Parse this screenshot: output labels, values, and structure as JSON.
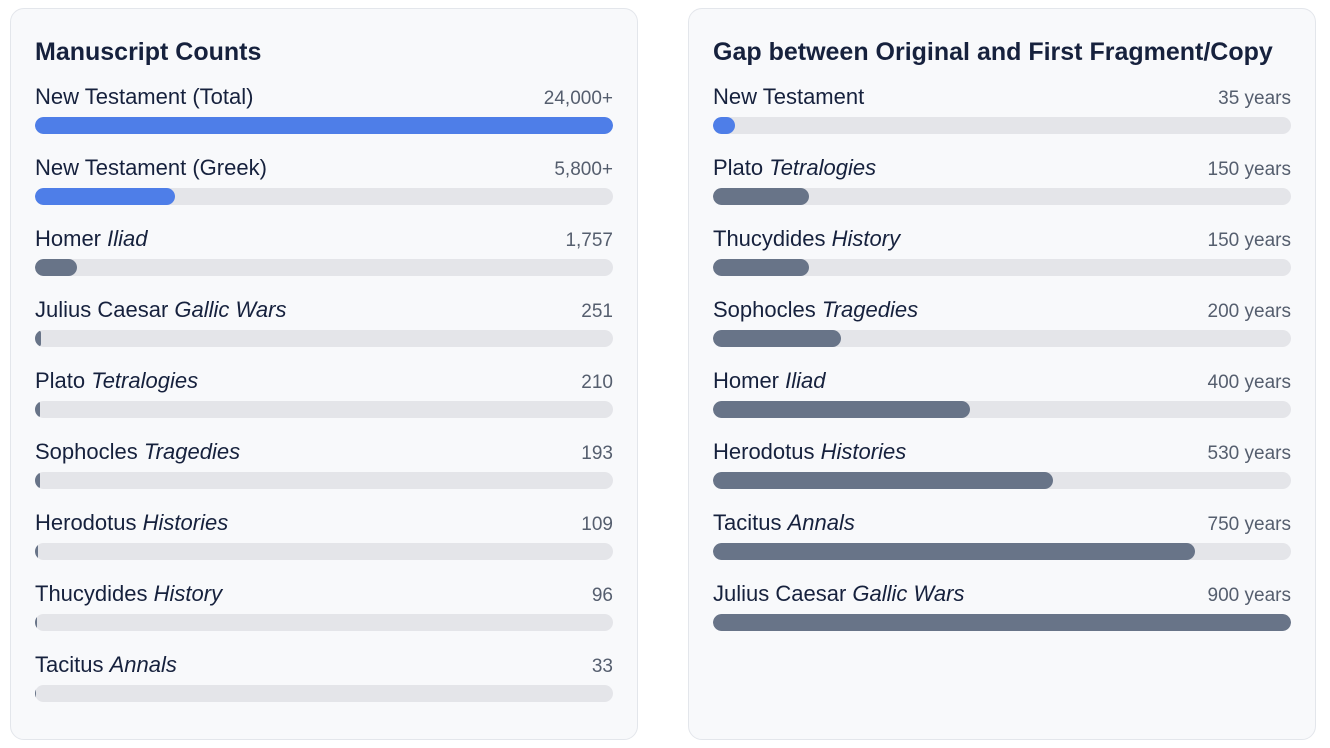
{
  "colors": {
    "highlight": "#4e7ee8",
    "default": "#687488",
    "track": "#e4e5e9"
  },
  "chart_data": [
    {
      "type": "bar",
      "orientation": "horizontal",
      "title": "Manuscript Counts",
      "max": 24000,
      "items": [
        {
          "author": "New Testament (Total)",
          "work": "",
          "value": 24000,
          "display": "24,000+",
          "highlight": true
        },
        {
          "author": "New Testament (Greek)",
          "work": "",
          "value": 5800,
          "display": "5,800+",
          "highlight": true
        },
        {
          "author": "Homer",
          "work": "Iliad",
          "value": 1757,
          "display": "1,757",
          "highlight": false
        },
        {
          "author": "Julius Caesar",
          "work": "Gallic Wars",
          "value": 251,
          "display": "251",
          "highlight": false
        },
        {
          "author": "Plato",
          "work": "Tetralogies",
          "value": 210,
          "display": "210",
          "highlight": false
        },
        {
          "author": "Sophocles",
          "work": "Tragedies",
          "value": 193,
          "display": "193",
          "highlight": false
        },
        {
          "author": "Herodotus",
          "work": "Histories",
          "value": 109,
          "display": "109",
          "highlight": false
        },
        {
          "author": "Thucydides",
          "work": "History",
          "value": 96,
          "display": "96",
          "highlight": false
        },
        {
          "author": "Tacitus",
          "work": "Annals",
          "value": 33,
          "display": "33",
          "highlight": false
        }
      ]
    },
    {
      "type": "bar",
      "orientation": "horizontal",
      "title": "Gap between Original and First Fragment/Copy",
      "max": 900,
      "items": [
        {
          "author": "New Testament",
          "work": "",
          "value": 35,
          "display": "35 years",
          "highlight": true
        },
        {
          "author": "Plato",
          "work": "Tetralogies",
          "value": 150,
          "display": "150 years",
          "highlight": false
        },
        {
          "author": "Thucydides",
          "work": "History",
          "value": 150,
          "display": "150 years",
          "highlight": false
        },
        {
          "author": "Sophocles",
          "work": "Tragedies",
          "value": 200,
          "display": "200 years",
          "highlight": false
        },
        {
          "author": "Homer",
          "work": "Iliad",
          "value": 400,
          "display": "400 years",
          "highlight": false
        },
        {
          "author": "Herodotus",
          "work": "Histories",
          "value": 530,
          "display": "530 years",
          "highlight": false
        },
        {
          "author": "Tacitus",
          "work": "Annals",
          "value": 750,
          "display": "750 years",
          "highlight": false
        },
        {
          "author": "Julius Caesar",
          "work": "Gallic Wars",
          "value": 900,
          "display": "900 years",
          "highlight": false
        }
      ]
    }
  ]
}
